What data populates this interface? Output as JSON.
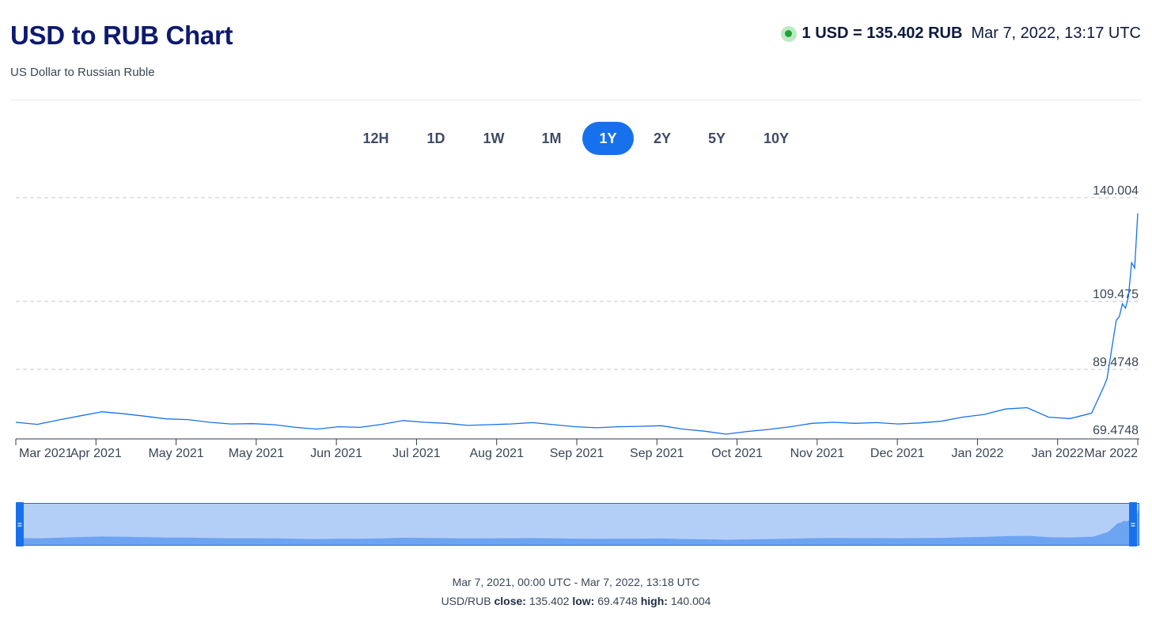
{
  "header": {
    "title": "USD to RUB Chart",
    "subtitle": "US Dollar to Russian Ruble",
    "rate": "1 USD = 135.402 RUB",
    "timestamp": "Mar 7, 2022, 13:17 UTC",
    "live_color": "#1ea337"
  },
  "range_tabs": [
    {
      "label": "12H",
      "active": false
    },
    {
      "label": "1D",
      "active": false
    },
    {
      "label": "1W",
      "active": false
    },
    {
      "label": "1M",
      "active": false
    },
    {
      "label": "1Y",
      "active": true
    },
    {
      "label": "2Y",
      "active": false
    },
    {
      "label": "5Y",
      "active": false
    },
    {
      "label": "10Y",
      "active": false
    }
  ],
  "chart_data": {
    "type": "line",
    "series": [
      {
        "color": "#1771ec",
        "x": [
          "2021-03-07",
          "2021-03-14",
          "2021-03-21",
          "2021-03-28",
          "2021-04-04",
          "2021-04-11",
          "2021-04-18",
          "2021-04-25",
          "2021-05-02",
          "2021-05-09",
          "2021-05-16",
          "2021-05-23",
          "2021-05-30",
          "2021-06-06",
          "2021-06-13",
          "2021-06-20",
          "2021-06-27",
          "2021-07-04",
          "2021-07-11",
          "2021-07-18",
          "2021-07-25",
          "2021-08-01",
          "2021-08-08",
          "2021-08-15",
          "2021-08-22",
          "2021-08-29",
          "2021-09-05",
          "2021-09-12",
          "2021-09-19",
          "2021-09-26",
          "2021-10-03",
          "2021-10-10",
          "2021-10-17",
          "2021-10-24",
          "2021-10-31",
          "2021-11-07",
          "2021-11-14",
          "2021-11-21",
          "2021-11-28",
          "2021-12-05",
          "2021-12-12",
          "2021-12-19",
          "2021-12-26",
          "2022-01-02",
          "2022-01-09",
          "2022-01-16",
          "2022-01-23",
          "2022-01-30",
          "2022-02-06",
          "2022-02-13",
          "2022-02-20",
          "2022-02-24",
          "2022-02-25",
          "2022-02-28",
          "2022-03-01",
          "2022-03-02",
          "2022-03-03",
          "2022-03-04",
          "2022-03-05",
          "2022-03-06",
          "2022-03-07"
        ],
        "y": [
          73.9,
          73.3,
          74.6,
          75.8,
          77.0,
          76.4,
          75.7,
          74.9,
          74.7,
          73.9,
          73.4,
          73.5,
          73.2,
          72.4,
          71.9,
          72.6,
          72.4,
          73.3,
          74.4,
          73.9,
          73.6,
          73.0,
          73.2,
          73.4,
          73.8,
          73.2,
          72.6,
          72.3,
          72.6,
          72.7,
          72.9,
          71.9,
          71.3,
          70.4,
          71.2,
          71.8,
          72.6,
          73.6,
          73.9,
          73.6,
          73.8,
          73.4,
          73.7,
          74.2,
          75.4,
          76.2,
          77.8,
          78.2,
          75.4,
          75.0,
          76.6,
          84.5,
          86.8,
          103.9,
          105.0,
          108.8,
          107.5,
          111.0,
          120.9,
          119.3,
          135.402
        ]
      }
    ],
    "y_ticks": [
      69.4748,
      89.4748,
      109.475,
      140.004
    ],
    "ylim": [
      69.4748,
      140.004
    ],
    "x_tick_labels": [
      "Mar 2021",
      "Apr 2021",
      "May 2021",
      "May 2021",
      "Jun 2021",
      "Jul 2021",
      "Aug 2021",
      "Sep 2021",
      "Sep 2021",
      "Oct 2021",
      "Nov 2021",
      "Dec 2021",
      "Jan 2022",
      "Jan 2022",
      "Mar 2022"
    ],
    "xlim": [
      "2021-03-07",
      "2022-03-07"
    ],
    "grid": true,
    "navigator": true
  },
  "footer": {
    "range_text": "Mar 7, 2021, 00:00 UTC - Mar 7, 2022, 13:18 UTC",
    "pair": "USD/RUB",
    "close_label": "close:",
    "close_value": "135.402",
    "low_label": "low:",
    "low_value": "69.4748",
    "high_label": "high:",
    "high_value": "140.004"
  }
}
